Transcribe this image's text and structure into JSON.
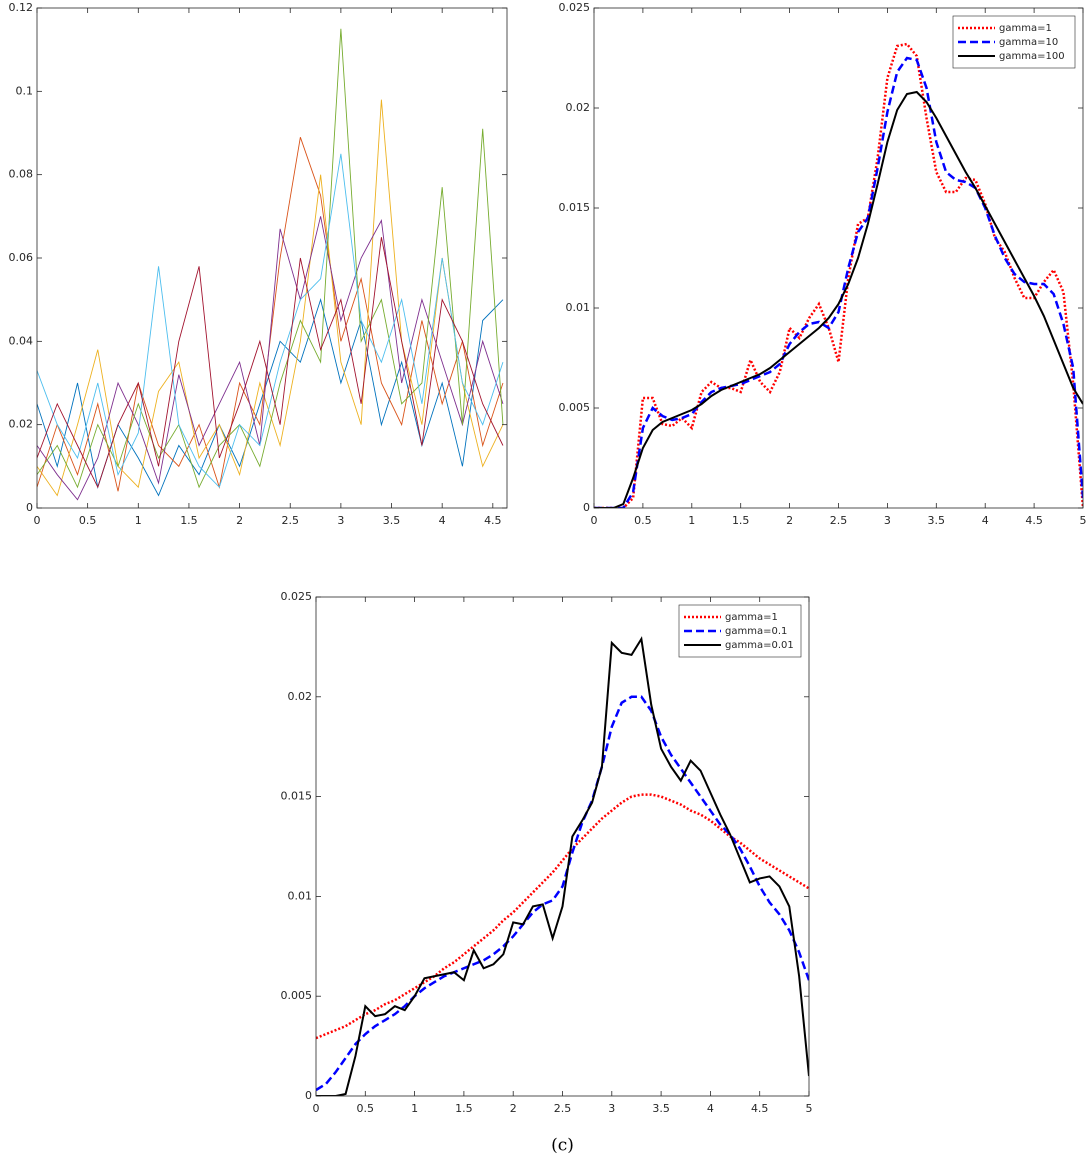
{
  "chart_data": [
    {
      "type": "line",
      "x": [
        0,
        0.2,
        0.4,
        0.6,
        0.8,
        1.0,
        1.2,
        1.4,
        1.6,
        1.8,
        2.0,
        2.2,
        2.4,
        2.6,
        2.8,
        3.0,
        3.2,
        3.4,
        3.6,
        3.8,
        4.0,
        4.2,
        4.4,
        4.6
      ],
      "xlim": [
        0,
        4.64
      ],
      "xticks": [
        0,
        0.5,
        1,
        1.5,
        2,
        2.5,
        3,
        3.5,
        4,
        4.5
      ],
      "ylim": [
        0,
        0.12
      ],
      "yticks": [
        0,
        0.02,
        0.04,
        0.06,
        0.08,
        0.1,
        0.12
      ],
      "series": [
        {
          "color": "#0072bd",
          "values": [
            0.025,
            0.01,
            0.03,
            0.005,
            0.02,
            0.012,
            0.003,
            0.015,
            0.008,
            0.02,
            0.01,
            0.025,
            0.04,
            0.035,
            0.05,
            0.03,
            0.045,
            0.02,
            0.035,
            0.015,
            0.03,
            0.01,
            0.045,
            0.05
          ]
        },
        {
          "color": "#d95319",
          "values": [
            0.005,
            0.02,
            0.008,
            0.025,
            0.004,
            0.03,
            0.015,
            0.01,
            0.02,
            0.005,
            0.03,
            0.02,
            0.06,
            0.089,
            0.075,
            0.04,
            0.055,
            0.03,
            0.02,
            0.045,
            0.025,
            0.04,
            0.015,
            0.03
          ]
        },
        {
          "color": "#edb120",
          "values": [
            0.01,
            0.003,
            0.02,
            0.038,
            0.01,
            0.005,
            0.028,
            0.035,
            0.012,
            0.02,
            0.008,
            0.03,
            0.015,
            0.04,
            0.08,
            0.035,
            0.02,
            0.098,
            0.04,
            0.02,
            0.06,
            0.03,
            0.01,
            0.02
          ]
        },
        {
          "color": "#7e2f8e",
          "values": [
            0.015,
            0.008,
            0.002,
            0.012,
            0.03,
            0.02,
            0.006,
            0.032,
            0.015,
            0.025,
            0.035,
            0.015,
            0.067,
            0.05,
            0.07,
            0.045,
            0.06,
            0.069,
            0.03,
            0.05,
            0.035,
            0.02,
            0.04,
            0.025
          ]
        },
        {
          "color": "#77ac30",
          "values": [
            0.008,
            0.015,
            0.005,
            0.02,
            0.01,
            0.025,
            0.012,
            0.02,
            0.005,
            0.015,
            0.02,
            0.01,
            0.03,
            0.045,
            0.035,
            0.115,
            0.04,
            0.05,
            0.025,
            0.03,
            0.077,
            0.02,
            0.091,
            0.02
          ]
        },
        {
          "color": "#4dbeee",
          "values": [
            0.033,
            0.02,
            0.012,
            0.03,
            0.008,
            0.018,
            0.058,
            0.02,
            0.01,
            0.005,
            0.02,
            0.015,
            0.035,
            0.05,
            0.055,
            0.085,
            0.045,
            0.035,
            0.05,
            0.025,
            0.06,
            0.03,
            0.02,
            0.035
          ]
        },
        {
          "color": "#a2142f",
          "values": [
            0.012,
            0.025,
            0.015,
            0.005,
            0.02,
            0.03,
            0.01,
            0.04,
            0.058,
            0.012,
            0.025,
            0.04,
            0.02,
            0.06,
            0.038,
            0.05,
            0.025,
            0.065,
            0.04,
            0.015,
            0.05,
            0.04,
            0.025,
            0.015
          ]
        }
      ]
    },
    {
      "type": "line",
      "legend": "upper right",
      "x": [
        0,
        0.1,
        0.2,
        0.3,
        0.4,
        0.5,
        0.6,
        0.7,
        0.8,
        0.9,
        1.0,
        1.1,
        1.2,
        1.3,
        1.4,
        1.5,
        1.6,
        1.7,
        1.8,
        1.9,
        2.0,
        2.1,
        2.2,
        2.3,
        2.4,
        2.5,
        2.6,
        2.7,
        2.8,
        2.9,
        3.0,
        3.1,
        3.2,
        3.3,
        3.4,
        3.5,
        3.6,
        3.7,
        3.8,
        3.9,
        4.0,
        4.1,
        4.2,
        4.3,
        4.4,
        4.5,
        4.6,
        4.7,
        4.8,
        4.9,
        5.0
      ],
      "xlim": [
        0,
        5
      ],
      "xticks": [
        0,
        0.5,
        1,
        1.5,
        2,
        2.5,
        3,
        3.5,
        4,
        4.5,
        5
      ],
      "ylim": [
        0,
        0.025
      ],
      "yticks": [
        0,
        0.005,
        0.01,
        0.015,
        0.02,
        0.025
      ],
      "series": [
        {
          "name": "gamma=1",
          "color": "#ff0000",
          "line_style": "dotted",
          "values": [
            0,
            0,
            0,
            0,
            0.0005,
            0.0055,
            0.0055,
            0.0042,
            0.0041,
            0.0045,
            0.004,
            0.0058,
            0.0063,
            0.006,
            0.006,
            0.0058,
            0.0074,
            0.0063,
            0.0058,
            0.0068,
            0.009,
            0.0085,
            0.0095,
            0.0102,
            0.009,
            0.0073,
            0.0115,
            0.0142,
            0.0145,
            0.0175,
            0.0215,
            0.0231,
            0.0232,
            0.0226,
            0.0195,
            0.0168,
            0.0158,
            0.0158,
            0.0165,
            0.0164,
            0.0152,
            0.0135,
            0.0128,
            0.0115,
            0.0105,
            0.0105,
            0.0113,
            0.0119,
            0.0108,
            0.0062,
            0
          ]
        },
        {
          "name": "gamma=10",
          "color": "#0000ff",
          "line_style": "dashed",
          "values": [
            0,
            0,
            0,
            0,
            0.0008,
            0.004,
            0.005,
            0.0046,
            0.0044,
            0.0045,
            0.0047,
            0.0053,
            0.0058,
            0.006,
            0.0061,
            0.0062,
            0.0064,
            0.0066,
            0.0068,
            0.0072,
            0.0082,
            0.0088,
            0.0092,
            0.0093,
            0.009,
            0.0098,
            0.012,
            0.0138,
            0.0145,
            0.017,
            0.0198,
            0.0218,
            0.0225,
            0.0224,
            0.021,
            0.0183,
            0.0168,
            0.0164,
            0.0163,
            0.016,
            0.015,
            0.0136,
            0.0125,
            0.0117,
            0.0113,
            0.0112,
            0.0112,
            0.0107,
            0.0092,
            0.007,
            0.0005
          ]
        },
        {
          "name": "gamma=100",
          "color": "#000000",
          "line_style": "solid",
          "values": [
            0,
            0,
            0,
            0.0002,
            0.0015,
            0.003,
            0.0039,
            0.0043,
            0.0045,
            0.0047,
            0.0049,
            0.0052,
            0.0056,
            0.0059,
            0.0061,
            0.0063,
            0.0065,
            0.0067,
            0.007,
            0.0074,
            0.0078,
            0.0082,
            0.0086,
            0.009,
            0.0095,
            0.0102,
            0.0112,
            0.0125,
            0.0142,
            0.0162,
            0.0183,
            0.0199,
            0.0207,
            0.0208,
            0.0203,
            0.0195,
            0.0186,
            0.0177,
            0.0168,
            0.016,
            0.0151,
            0.0142,
            0.0133,
            0.0124,
            0.0115,
            0.0106,
            0.0096,
            0.0084,
            0.0072,
            0.006,
            0.0052
          ]
        }
      ]
    },
    {
      "type": "line",
      "legend": "upper right",
      "caption": "(c)",
      "x": [
        0,
        0.1,
        0.2,
        0.3,
        0.4,
        0.5,
        0.6,
        0.7,
        0.8,
        0.9,
        1.0,
        1.1,
        1.2,
        1.3,
        1.4,
        1.5,
        1.6,
        1.7,
        1.8,
        1.9,
        2.0,
        2.1,
        2.2,
        2.3,
        2.4,
        2.5,
        2.6,
        2.7,
        2.8,
        2.9,
        3.0,
        3.1,
        3.2,
        3.3,
        3.4,
        3.5,
        3.6,
        3.7,
        3.8,
        3.9,
        4.0,
        4.1,
        4.2,
        4.3,
        4.4,
        4.5,
        4.6,
        4.7,
        4.8,
        4.9,
        5.0
      ],
      "xlim": [
        0,
        5
      ],
      "xticks": [
        0,
        0.5,
        1,
        1.5,
        2,
        2.5,
        3,
        3.5,
        4,
        4.5,
        5
      ],
      "ylim": [
        0,
        0.025
      ],
      "yticks": [
        0,
        0.005,
        0.01,
        0.015,
        0.02,
        0.025
      ],
      "series": [
        {
          "name": "gamma=1",
          "color": "#ff0000",
          "line_style": "dotted",
          "values": [
            0.0029,
            0.0031,
            0.0033,
            0.0035,
            0.0038,
            0.0041,
            0.0043,
            0.0046,
            0.0048,
            0.0051,
            0.0054,
            0.0057,
            0.006,
            0.0064,
            0.0067,
            0.0071,
            0.0075,
            0.0079,
            0.0083,
            0.0088,
            0.0092,
            0.0097,
            0.0102,
            0.0107,
            0.0112,
            0.0118,
            0.0124,
            0.0129,
            0.0134,
            0.0139,
            0.0143,
            0.0147,
            0.015,
            0.0151,
            0.0151,
            0.015,
            0.0148,
            0.0146,
            0.0143,
            0.0141,
            0.0138,
            0.0134,
            0.013,
            0.0127,
            0.0123,
            0.0119,
            0.0116,
            0.0113,
            0.011,
            0.0107,
            0.0104
          ]
        },
        {
          "name": "gamma=0.1",
          "color": "#0000ff",
          "line_style": "dashed",
          "values": [
            0.0003,
            0.0006,
            0.0012,
            0.0019,
            0.0026,
            0.0031,
            0.0035,
            0.0038,
            0.0041,
            0.0045,
            0.005,
            0.0054,
            0.0057,
            0.006,
            0.0062,
            0.0064,
            0.0066,
            0.0068,
            0.0071,
            0.0075,
            0.008,
            0.0086,
            0.0092,
            0.0096,
            0.0098,
            0.0105,
            0.0122,
            0.0137,
            0.0148,
            0.0165,
            0.0185,
            0.0197,
            0.02,
            0.02,
            0.0193,
            0.018,
            0.0171,
            0.0164,
            0.0157,
            0.015,
            0.0143,
            0.0136,
            0.0131,
            0.0124,
            0.0115,
            0.0105,
            0.0097,
            0.0091,
            0.0083,
            0.0072,
            0.0058
          ]
        },
        {
          "name": "gamma=0.01",
          "color": "#000000",
          "line_style": "solid",
          "values": [
            0,
            0,
            0,
            0.0001,
            0.002,
            0.0045,
            0.004,
            0.0041,
            0.0045,
            0.0043,
            0.005,
            0.0059,
            0.006,
            0.0061,
            0.0062,
            0.0058,
            0.0073,
            0.0064,
            0.0066,
            0.0071,
            0.0087,
            0.0086,
            0.0095,
            0.0096,
            0.0079,
            0.0095,
            0.013,
            0.0138,
            0.0147,
            0.0165,
            0.0227,
            0.0222,
            0.0221,
            0.0229,
            0.0196,
            0.0174,
            0.0165,
            0.0158,
            0.0168,
            0.0163,
            0.0152,
            0.0141,
            0.0131,
            0.0119,
            0.0107,
            0.0109,
            0.011,
            0.0105,
            0.0095,
            0.006,
            0.001
          ]
        }
      ]
    }
  ]
}
